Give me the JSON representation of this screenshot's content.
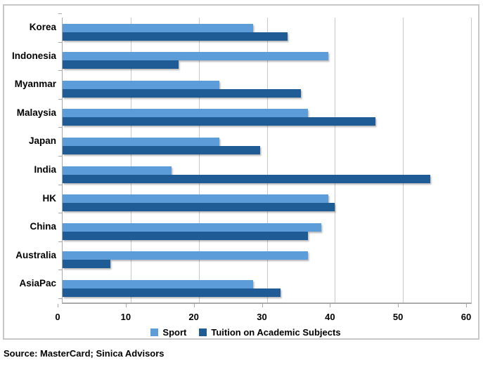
{
  "chart_data": {
    "type": "bar",
    "orientation": "horizontal",
    "title": "",
    "xlabel": "",
    "ylabel": "",
    "categories": [
      "Korea",
      "Indonesia",
      "Myanmar",
      "Malaysia",
      "Japan",
      "India",
      "HK",
      "China",
      "Australia",
      "AsiaPac"
    ],
    "series": [
      {
        "name": "Sport",
        "color": "#5C9CD9",
        "values": [
          28,
          39,
          23,
          36,
          23,
          16,
          39,
          38,
          36,
          28
        ]
      },
      {
        "name": "Tuition on Academic Subjects",
        "color": "#1F5B94",
        "values": [
          33,
          17,
          35,
          46,
          29,
          54,
          40,
          36,
          7,
          32
        ]
      }
    ],
    "xlim": [
      0,
      60
    ],
    "xticks": [
      0,
      10,
      20,
      30,
      40,
      50,
      60
    ],
    "grid": true,
    "legend_position": "bottom"
  },
  "colors": {
    "gridline": "#c9c9c9",
    "axis": "#a9a9a9",
    "frame_border": "#c7c7c7",
    "text": "#000000"
  },
  "source_note": "Source: MasterCard; Sinica Advisors"
}
